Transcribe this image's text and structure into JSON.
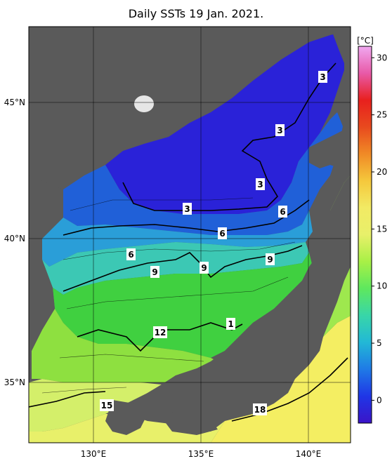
{
  "title": "Daily SSTs 19 Jan. 2021.",
  "colorbar": {
    "unit": "[°C]",
    "ticks": [
      "30",
      "25",
      "20",
      "15",
      "10",
      "5",
      "0"
    ],
    "range": [
      -2,
      31
    ],
    "stops": [
      "#3b14c8",
      "#1f36e6",
      "#1f7ae6",
      "#22b8d6",
      "#38d6a8",
      "#5ee85e",
      "#a8f046",
      "#e8f06a",
      "#f2ea64",
      "#f5c83c",
      "#f08a26",
      "#e84a1e",
      "#e8201e",
      "#e85aa8",
      "#f0a8f0"
    ]
  },
  "axes": {
    "lon_labels": [
      "130°E",
      "135°E",
      "140°E"
    ],
    "lat_labels": [
      "45°N",
      "40°N",
      "35°N"
    ]
  },
  "isotherms": [
    "3",
    "3",
    "3",
    "3",
    "6",
    "6",
    "6",
    "9",
    "9",
    "9",
    "12",
    "1",
    "15",
    "18"
  ],
  "colors": {
    "land": "#5a5a5a",
    "cold_deep": "#2a22d8",
    "cold": "#2060d8",
    "mid_blue": "#2a9ed8",
    "cyan": "#3cc8b4",
    "green": "#40d040",
    "light_green": "#8ee040",
    "yellow_green": "#d4ef6a",
    "yellow": "#f4ee62"
  }
}
